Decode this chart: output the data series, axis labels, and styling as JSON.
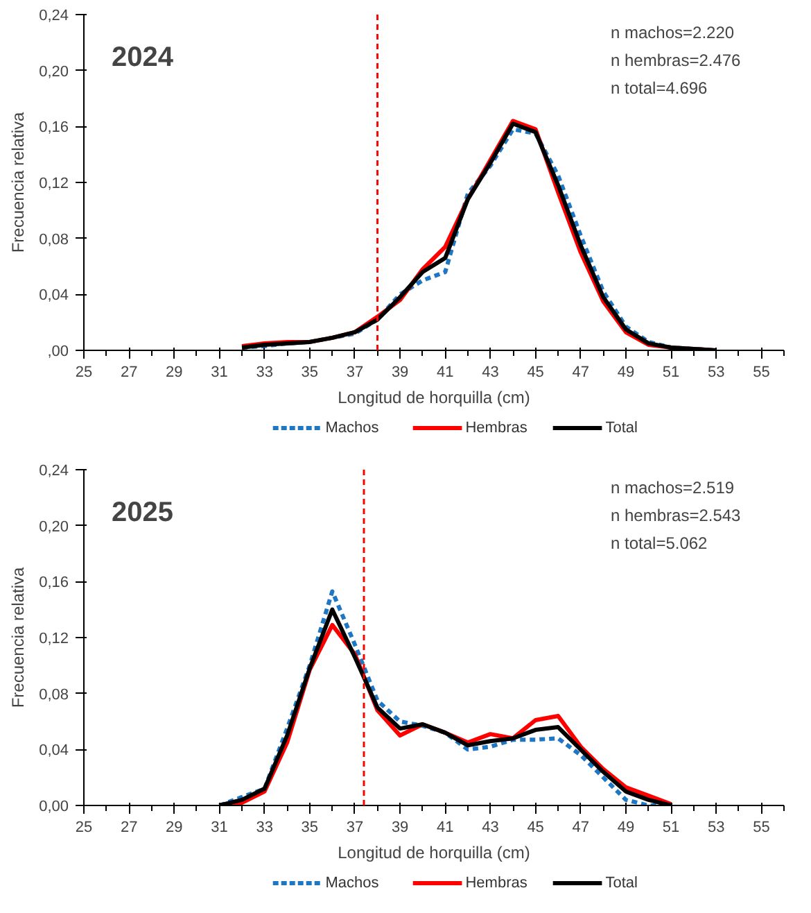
{
  "chart_data": [
    {
      "type": "line",
      "title": "2024",
      "xlabel": "Longitud de horquilla (cm)",
      "ylabel": "Frecuencia relativa",
      "annotations": [
        "n machos=2.220",
        "n hembras=2.476",
        "n total=4.696"
      ],
      "x": [
        32,
        33,
        34,
        35,
        36,
        37,
        38,
        39,
        40,
        41,
        42,
        43,
        44,
        45,
        46,
        47,
        48,
        49,
        50,
        51,
        52,
        53
      ],
      "series": [
        {
          "name": "Machos",
          "color": "#1f77c4",
          "line_style": "dashed",
          "values": [
            0.002,
            0.003,
            0.005,
            0.006,
            0.009,
            0.012,
            0.022,
            0.04,
            0.05,
            0.056,
            0.112,
            0.132,
            0.158,
            0.155,
            0.125,
            0.082,
            0.042,
            0.017,
            0.006,
            0.002,
            0.001,
            0.0
          ]
        },
        {
          "name": "Hembras",
          "color": "#ff0000",
          "line_style": "solid",
          "values": [
            0.003,
            0.005,
            0.006,
            0.006,
            0.009,
            0.013,
            0.024,
            0.036,
            0.058,
            0.074,
            0.108,
            0.136,
            0.164,
            0.158,
            0.113,
            0.07,
            0.035,
            0.013,
            0.004,
            0.002,
            0.001,
            0.0
          ]
        },
        {
          "name": "Total",
          "color": "#000000",
          "line_style": "solid",
          "values": [
            0.002,
            0.004,
            0.005,
            0.006,
            0.009,
            0.013,
            0.022,
            0.038,
            0.056,
            0.066,
            0.108,
            0.134,
            0.162,
            0.156,
            0.118,
            0.075,
            0.038,
            0.015,
            0.005,
            0.002,
            0.001,
            0.0
          ]
        }
      ],
      "xlim": [
        25,
        56
      ],
      "xticks": [
        25,
        27,
        29,
        31,
        33,
        35,
        37,
        39,
        41,
        43,
        45,
        47,
        49,
        51,
        53,
        55
      ],
      "ylim": [
        0,
        0.24
      ],
      "yticks": [
        {
          "value": 0,
          "label": ",00"
        },
        {
          "value": 0.04,
          "label": "0,04"
        },
        {
          "value": 0.08,
          "label": "0,08"
        },
        {
          "value": 0.12,
          "label": "0,12"
        },
        {
          "value": 0.16,
          "label": "0,16"
        },
        {
          "value": 0.2,
          "label": "0,20"
        },
        {
          "value": 0.24,
          "label": "0,24"
        }
      ],
      "ref_lines": [
        {
          "axis": "x",
          "value": 38,
          "color": "#ff0000",
          "line_style": "dashed"
        }
      ],
      "grid": false,
      "legend": "bottom"
    },
    {
      "type": "line",
      "title": "2025",
      "xlabel": "Longitud de horquilla (cm)",
      "ylabel": "Frecuencia relativa",
      "annotations": [
        "n machos=2.519",
        "n hembras=2.543",
        "n total=5.062"
      ],
      "x": [
        31,
        32,
        33,
        34,
        35,
        36,
        37,
        38,
        39,
        40,
        41,
        42,
        43,
        44,
        45,
        46,
        47,
        48,
        49,
        50,
        51
      ],
      "series": [
        {
          "name": "Machos",
          "color": "#1f77c4",
          "line_style": "dashed",
          "values": [
            0.0,
            0.006,
            0.012,
            0.055,
            0.1,
            0.153,
            0.115,
            0.075,
            0.06,
            0.057,
            0.052,
            0.04,
            0.042,
            0.047,
            0.047,
            0.048,
            0.036,
            0.02,
            0.004,
            0.0,
            0.0
          ]
        },
        {
          "name": "Hembras",
          "color": "#ff0000",
          "line_style": "solid",
          "values": [
            0.0,
            0.002,
            0.01,
            0.045,
            0.097,
            0.129,
            0.108,
            0.068,
            0.05,
            0.058,
            0.052,
            0.045,
            0.051,
            0.048,
            0.061,
            0.064,
            0.042,
            0.026,
            0.013,
            0.007,
            0.001
          ]
        },
        {
          "name": "Total",
          "color": "#000000",
          "line_style": "solid",
          "values": [
            0.0,
            0.004,
            0.012,
            0.05,
            0.098,
            0.14,
            0.106,
            0.07,
            0.055,
            0.058,
            0.052,
            0.043,
            0.046,
            0.048,
            0.054,
            0.056,
            0.04,
            0.024,
            0.01,
            0.004,
            0.0
          ]
        }
      ],
      "xlim": [
        25,
        56
      ],
      "xticks": [
        25,
        27,
        29,
        31,
        33,
        35,
        37,
        39,
        41,
        43,
        45,
        47,
        49,
        51,
        53,
        55
      ],
      "ylim": [
        0,
        0.24
      ],
      "yticks": [
        {
          "value": 0,
          "label": "0,00"
        },
        {
          "value": 0.04,
          "label": "0,04"
        },
        {
          "value": 0.08,
          "label": "0,08"
        },
        {
          "value": 0.12,
          "label": "0,12"
        },
        {
          "value": 0.16,
          "label": "0,16"
        },
        {
          "value": 0.2,
          "label": "0,20"
        },
        {
          "value": 0.24,
          "label": "0,24"
        }
      ],
      "ref_lines": [
        {
          "axis": "x",
          "value": 37.4,
          "color": "#ff0000",
          "line_style": "dashed"
        }
      ],
      "grid": false,
      "legend": "bottom"
    }
  ]
}
